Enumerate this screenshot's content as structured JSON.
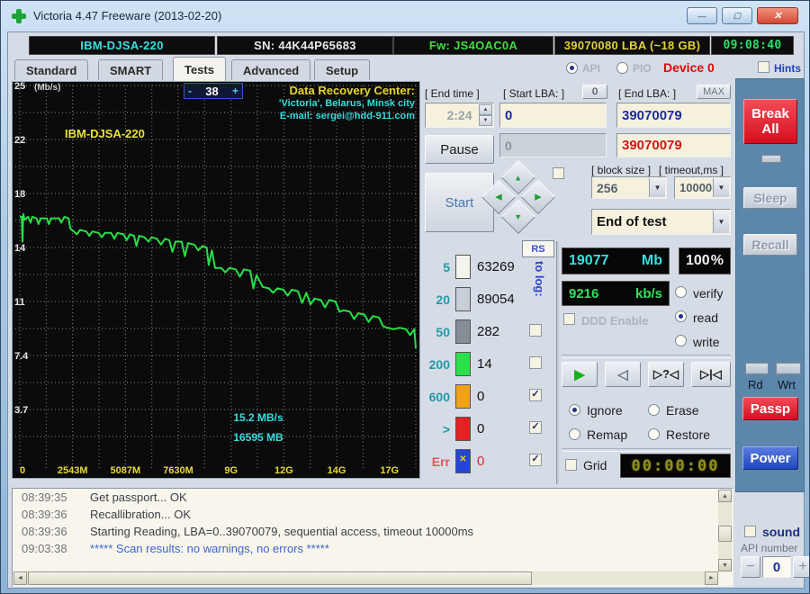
{
  "window": {
    "title": "Victoria 4.47  Freeware (2013-02-20)"
  },
  "icons": {
    "minimize": "—",
    "maximize": "▢",
    "close": "✕",
    "check": "✓",
    "dropdown_arrow": "▼",
    "spin_up": "▲",
    "spin_down": "▼",
    "nav_up": "▲",
    "nav_down": "▼",
    "nav_left": "◀",
    "nav_right": "▶",
    "play": "▶",
    "reverse": "◁",
    "seek_question": "▷?◁",
    "seek_end": "▷|◁",
    "scroll_up": "▲",
    "scroll_down": "▼",
    "scroll_left": "◄",
    "scroll_right": "►",
    "err_cross": "✕"
  },
  "info_bar": {
    "model": "IBM-DJSA-220",
    "serial": "SN: 44K44P65683",
    "firmware": "Fw: JS4OAC0A",
    "capacity": "39070080 LBA (~18 GB)",
    "clock": "09:08:40"
  },
  "tabs": {
    "items": [
      "Standard",
      "SMART",
      "Tests",
      "Advanced",
      "Setup"
    ],
    "active": "Tests"
  },
  "mode_row": {
    "api_label": "API",
    "pio_label": "PIO",
    "device_label": "Device 0",
    "hints_label": "Hints"
  },
  "graph": {
    "speed_minus": "-",
    "speed_value": "38",
    "speed_plus": "+",
    "banner_line1": "Data Recovery Center:",
    "banner_line2": "'Victoria', Belarus, Minsk city",
    "banner_line3": "E-mail: sergei@hdd-911.com"
  },
  "chart_data": {
    "type": "line",
    "title": "Surface read speed vs position",
    "ylabel": "(Mb/s)",
    "x_unit": "MB",
    "x_max": 19073,
    "y_max": 25.9,
    "y_step": 1.85,
    "grid": true,
    "y_ticks": [
      {
        "v": 25.9,
        "label": "25"
      },
      {
        "v": 22.2,
        "label": "22"
      },
      {
        "v": 18.5,
        "label": "18"
      },
      {
        "v": 14.8,
        "label": "14"
      },
      {
        "v": 11.1,
        "label": "11"
      },
      {
        "v": 7.4,
        "label": "7.4"
      },
      {
        "v": 3.7,
        "label": "3.7"
      }
    ],
    "x_ticks": [
      {
        "v": 0,
        "label": "0"
      },
      {
        "v": 2543,
        "label": "2543M"
      },
      {
        "v": 5087,
        "label": "5087M"
      },
      {
        "v": 7630,
        "label": "7630M"
      },
      {
        "v": 10174,
        "label": "9G"
      },
      {
        "v": 12717,
        "label": "12G"
      },
      {
        "v": 15261,
        "label": "14G"
      },
      {
        "v": 17804,
        "label": "17G"
      }
    ],
    "series": [
      {
        "name": "read speed (MB/s)",
        "color": "#27e046",
        "points": [
          [
            0,
            16.9
          ],
          [
            90,
            16.9
          ],
          [
            130,
            15.2
          ],
          [
            170,
            17.1
          ],
          [
            230,
            16.7
          ],
          [
            400,
            16.9
          ],
          [
            520,
            16.5
          ],
          [
            600,
            16.9
          ],
          [
            800,
            16.8
          ],
          [
            900,
            16.4
          ],
          [
            1000,
            16.8
          ],
          [
            1300,
            16.8
          ],
          [
            1400,
            16.4
          ],
          [
            1500,
            16.8
          ],
          [
            1900,
            16.8
          ],
          [
            2000,
            16.5
          ],
          [
            2150,
            16.9
          ],
          [
            2350,
            16.8
          ],
          [
            2430,
            16.1
          ],
          [
            2600,
            15.9
          ],
          [
            2750,
            15.7
          ],
          [
            2900,
            16.0
          ],
          [
            3200,
            15.9
          ],
          [
            3350,
            15.6
          ],
          [
            3500,
            15.9
          ],
          [
            3800,
            15.8
          ],
          [
            3950,
            15.5
          ],
          [
            4100,
            15.8
          ],
          [
            4400,
            15.8
          ],
          [
            4550,
            15.4
          ],
          [
            4700,
            15.8
          ],
          [
            5000,
            15.7
          ],
          [
            5150,
            15.3
          ],
          [
            5300,
            15.7
          ],
          [
            5500,
            15.6
          ],
          [
            5620,
            14.9
          ],
          [
            5750,
            15.6
          ],
          [
            6000,
            15.5
          ],
          [
            6200,
            15.2
          ],
          [
            6350,
            15.5
          ],
          [
            6600,
            15.4
          ],
          [
            6800,
            15.0
          ],
          [
            7000,
            15.4
          ],
          [
            7200,
            15.3
          ],
          [
            7350,
            14.5
          ],
          [
            7500,
            15.2
          ],
          [
            7800,
            15.2
          ],
          [
            7950,
            14.2
          ],
          [
            8100,
            15.1
          ],
          [
            8400,
            15.0
          ],
          [
            8600,
            14.6
          ],
          [
            8800,
            14.9
          ],
          [
            9000,
            14.8
          ],
          [
            9100,
            13.6
          ],
          [
            9250,
            14.6
          ],
          [
            9400,
            13.4
          ],
          [
            9700,
            13.4
          ],
          [
            9900,
            13.1
          ],
          [
            10100,
            13.4
          ],
          [
            10400,
            13.3
          ],
          [
            10600,
            12.8
          ],
          [
            10800,
            13.3
          ],
          [
            11100,
            13.2
          ],
          [
            11250,
            12.0
          ],
          [
            11400,
            12.9
          ],
          [
            11700,
            12.1
          ],
          [
            12000,
            12.0
          ],
          [
            12200,
            11.7
          ],
          [
            12400,
            12.0
          ],
          [
            12700,
            11.9
          ],
          [
            12900,
            11.5
          ],
          [
            13100,
            11.9
          ],
          [
            13400,
            11.8
          ],
          [
            13600,
            11.0
          ],
          [
            13800,
            11.7
          ],
          [
            14000,
            10.9
          ],
          [
            14200,
            11.3
          ],
          [
            14500,
            11.2
          ],
          [
            14700,
            10.7
          ],
          [
            14900,
            11.2
          ],
          [
            15200,
            11.1
          ],
          [
            15400,
            10.4
          ],
          [
            15600,
            10.5
          ],
          [
            15900,
            10.4
          ],
          [
            16100,
            9.9
          ],
          [
            16300,
            10.3
          ],
          [
            16600,
            10.2
          ],
          [
            16800,
            9.7
          ],
          [
            17000,
            10.1
          ],
          [
            17300,
            10.0
          ],
          [
            17500,
            9.4
          ],
          [
            17700,
            9.3
          ],
          [
            18000,
            9.2
          ],
          [
            18300,
            9.3
          ],
          [
            18600,
            9.2
          ],
          [
            18800,
            8.8
          ],
          [
            19000,
            9.2
          ],
          [
            19073,
            7.9
          ]
        ]
      }
    ],
    "annotations": [
      {
        "text": "IBM-DJSA-220",
        "color": "#e8e234"
      },
      {
        "text": "15.2 MB/s",
        "color": "#35dcdc"
      },
      {
        "text": "16595 MB",
        "color": "#35dcdc"
      }
    ]
  },
  "test_panel": {
    "end_time_label": "[ End time ]",
    "end_time_value": "2:24",
    "start_lba_label": "[ Start LBA: ]",
    "start_lba_zero_button": "0",
    "end_lba_label": "[ End LBA: ]",
    "max_button": "MAX",
    "start_lba_value": "0",
    "end_lba_value": "39070079",
    "current_lba_value": "0",
    "remain_lba_value": "39070079",
    "pause_button": "Pause",
    "start_button": "Start",
    "block_size_label": "[ block size ]",
    "block_size_value": "256",
    "timeout_label": "[ timeout,ms ]",
    "timeout_value": "10000",
    "action_select_value": "End of test"
  },
  "latency_panel": {
    "rs_button": "RS",
    "to_log_label": "to log:",
    "rows": [
      {
        "label": "5",
        "count": "63269",
        "color": "#f4f4ee"
      },
      {
        "label": "20",
        "count": "89054",
        "color": "#c9cfd8"
      },
      {
        "label": "50",
        "count": "282",
        "color": "#858d97"
      },
      {
        "label": "200",
        "count": "14",
        "color": "#2bdf4d"
      },
      {
        "label": "600",
        "count": "0",
        "color": "#f0a21c"
      },
      {
        "label": ">",
        "count": "0",
        "color": "#e32222"
      },
      {
        "label": "Err",
        "count": "0",
        "color": "#2446d8"
      }
    ]
  },
  "status_panel": {
    "mb_value": "19077",
    "mb_unit": "Mb",
    "percent_value": "100",
    "percent_unit": "%",
    "speed_value": "9216",
    "speed_unit": "kb/s",
    "ddd_label": "DDD Enable",
    "verify_label": "verify",
    "read_label": "read",
    "write_label": "write"
  },
  "action_panel": {
    "ignore_label": "Ignore",
    "erase_label": "Erase",
    "remap_label": "Remap",
    "restore_label": "Restore",
    "grid_label": "Grid",
    "timer_value": "00:00:00"
  },
  "sidebar": {
    "break_all": "Break All",
    "sleep": "Sleep",
    "recall": "Recall",
    "rd_label": "Rd",
    "wrt_label": "Wrt",
    "passp": "Passp",
    "power": "Power"
  },
  "log": {
    "entries": [
      {
        "time": "08:39:35",
        "text": "Get passport... OK"
      },
      {
        "time": "08:39:36",
        "text": "Recallibration... OK"
      },
      {
        "time": "08:39:36",
        "text": "Starting Reading, LBA=0..39070079, sequential access, timeout 10000ms"
      },
      {
        "time": "09:03:38",
        "text": "***** Scan results: no warnings, no errors *****"
      }
    ]
  },
  "footer": {
    "sound_label": "sound",
    "api_number_label": "API number",
    "api_value": "0",
    "minus": "−",
    "plus": "+"
  }
}
